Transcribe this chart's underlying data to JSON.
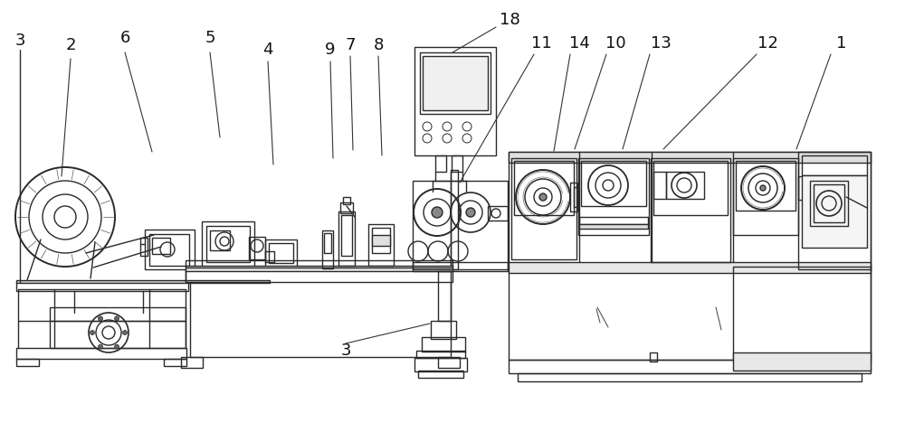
{
  "figsize": [
    10.0,
    4.78
  ],
  "dpi": 100,
  "bg": "#ffffff",
  "lc": "#2a2a2a",
  "lw": 1.0,
  "fs": 13,
  "label_color": "#111111",
  "leader_color": "#333333",
  "labels": [
    [
      "3",
      22,
      45,
      22,
      60,
      22,
      218
    ],
    [
      "2",
      78,
      50,
      78,
      65,
      68,
      195
    ],
    [
      "6",
      138,
      42,
      138,
      58,
      168,
      168
    ],
    [
      "5",
      232,
      42,
      232,
      58,
      243,
      152
    ],
    [
      "4",
      296,
      55,
      296,
      68,
      302,
      182
    ],
    [
      "9",
      365,
      55,
      365,
      68,
      368,
      175
    ],
    [
      "7",
      387,
      50,
      387,
      62,
      390,
      166
    ],
    [
      "8",
      418,
      50,
      418,
      62,
      422,
      172
    ],
    [
      "18",
      563,
      22,
      548,
      30,
      500,
      58
    ],
    [
      "11",
      598,
      48,
      590,
      60,
      508,
      202
    ],
    [
      "14",
      640,
      48,
      630,
      60,
      612,
      167
    ],
    [
      "10",
      680,
      48,
      670,
      60,
      635,
      165
    ],
    [
      "13",
      730,
      48,
      718,
      60,
      688,
      165
    ],
    [
      "12",
      848,
      48,
      836,
      60,
      733,
      165
    ],
    [
      "1",
      930,
      48,
      918,
      60,
      880,
      165
    ],
    [
      "3",
      382,
      388,
      382,
      380,
      475,
      358
    ]
  ]
}
